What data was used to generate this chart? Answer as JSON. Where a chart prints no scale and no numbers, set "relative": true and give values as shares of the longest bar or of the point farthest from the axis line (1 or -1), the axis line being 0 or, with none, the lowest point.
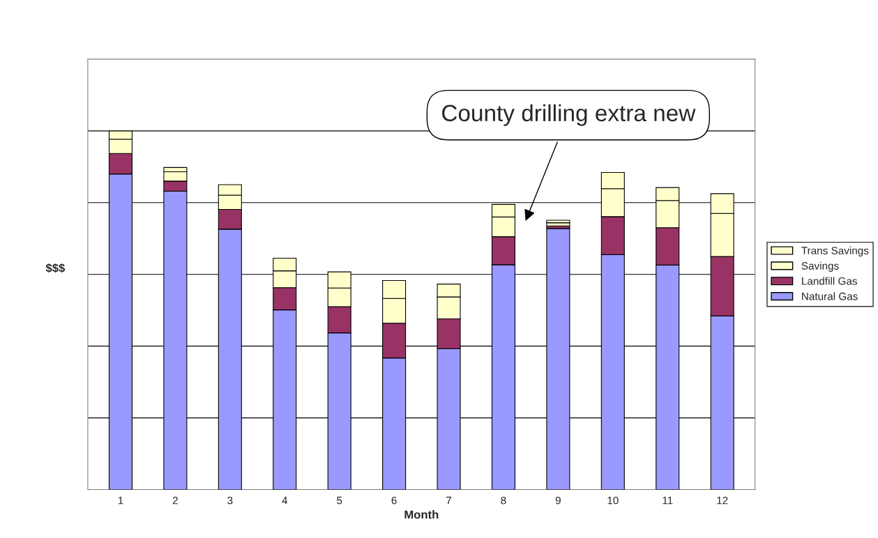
{
  "chart_data": {
    "type": "bar",
    "stacked": true,
    "relative": true,
    "xlabel": "Month",
    "ylabel": "$$$",
    "categories": [
      "1",
      "2",
      "3",
      "4",
      "5",
      "6",
      "7",
      "8",
      "9",
      "10",
      "11",
      "12"
    ],
    "series": [
      {
        "name": "Natural Gas",
        "color": "#9999ff",
        "values": [
          0.88,
          0.832,
          0.726,
          0.501,
          0.437,
          0.367,
          0.393,
          0.627,
          0.728,
          0.655,
          0.626,
          0.484
        ]
      },
      {
        "name": "Landfill Gas",
        "color": "#993366",
        "values": [
          0.057,
          0.028,
          0.055,
          0.062,
          0.073,
          0.097,
          0.083,
          0.078,
          0.007,
          0.106,
          0.104,
          0.166
        ]
      },
      {
        "name": "Savings",
        "color": "#ffffcc",
        "values": [
          0.04,
          0.026,
          0.04,
          0.047,
          0.052,
          0.069,
          0.061,
          0.055,
          0.009,
          0.078,
          0.076,
          0.12
        ]
      },
      {
        "name": "Trans Savings",
        "color": "#ffffcc",
        "values": [
          0.023,
          0.012,
          0.029,
          0.035,
          0.045,
          0.05,
          0.036,
          0.035,
          0.007,
          0.045,
          0.036,
          0.055
        ]
      }
    ],
    "annotations": [
      "County drilling extra new"
    ],
    "grid": "y",
    "legend": "right"
  }
}
